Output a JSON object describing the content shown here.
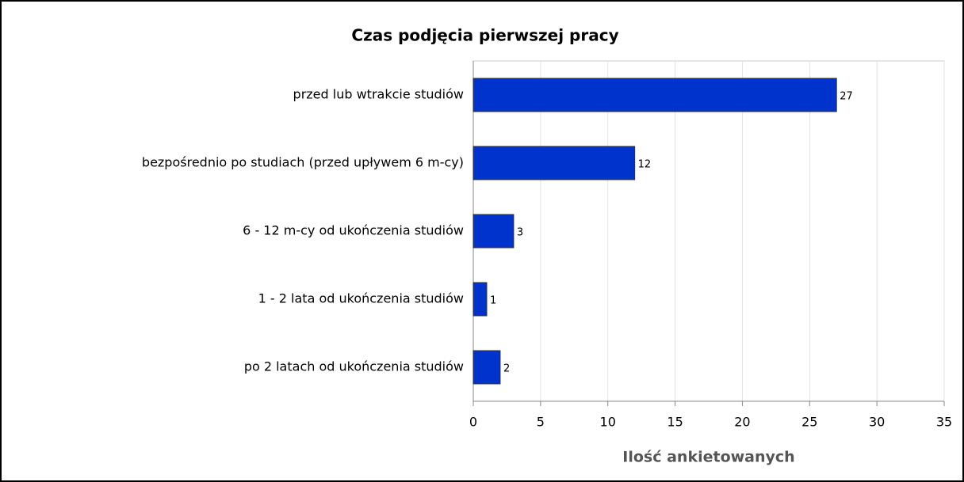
{
  "chart_data": {
    "type": "bar",
    "orientation": "horizontal",
    "title": "Czas podjęcia pierwszej pracy",
    "x_label": "Ilość ankietowanych",
    "categories": [
      "przed lub wtrakcie studiów",
      "bezpośrednio po studiach (przed upływem 6 m-cy)",
      "6 - 12 m-cy od ukończenia studiów",
      "1 - 2 lata od ukończenia studiów",
      "po 2 latach od ukończenia studiów"
    ],
    "values": [
      27,
      12,
      3,
      1,
      2
    ],
    "color": "#0033cc",
    "xlim": [
      0,
      35
    ],
    "xticks": [
      0,
      5,
      10,
      15,
      20,
      25,
      30,
      35
    ],
    "grid": true
  }
}
